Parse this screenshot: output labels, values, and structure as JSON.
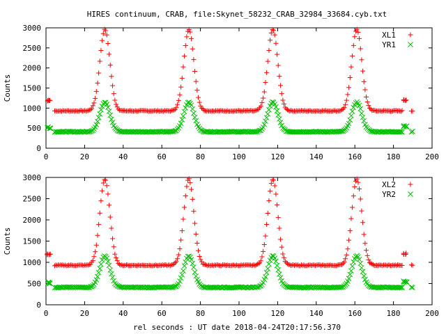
{
  "title": "HIRES continuum, CRAB, file:Skynet_58232_CRAB_32984_33684.cyb.txt",
  "xlabel": "rel seconds : UT date 2018-04-24T20:17:56.370",
  "chart_data": [
    {
      "type": "scatter",
      "panel": "top",
      "ylabel": "Counts",
      "xlim": [
        0,
        200
      ],
      "ylim": [
        0,
        3000
      ],
      "xticks": [
        "0",
        "20",
        "40",
        "60",
        "80",
        "100",
        "120",
        "140",
        "160",
        "180",
        "200"
      ],
      "yticks": [
        "0",
        "500",
        "1000",
        "1500",
        "2000",
        "2500",
        "3000"
      ],
      "legend_position": "top-right",
      "series": [
        {
          "name": "XL1",
          "marker": "plus",
          "color": "#ff0000",
          "baseline": 930,
          "peak_height": 2960,
          "peak_centers": [
            30.5,
            74,
            117.5,
            161
          ],
          "peak_sigma": 2.6,
          "calibration_points": [
            [
              1,
              1190
            ],
            [
              2,
              1190
            ],
            [
              185.5,
              1200
            ],
            [
              186.5,
              1200
            ]
          ],
          "gaps": [
            [
              2.5,
              4
            ],
            [
              187,
              188.5
            ]
          ],
          "x_range": [
            1,
            190
          ]
        },
        {
          "name": "YR1",
          "marker": "x",
          "color": "#00c000",
          "baseline": 410,
          "peak_height": 1150,
          "peak_centers": [
            30.5,
            74,
            117.5,
            161
          ],
          "peak_sigma": 2.6,
          "calibration_points": [
            [
              1,
              520
            ],
            [
              2,
              510
            ],
            [
              185.5,
              545
            ],
            [
              186.5,
              540
            ]
          ],
          "gaps": [
            [
              2.5,
              4
            ],
            [
              187,
              188.5
            ]
          ],
          "x_range": [
            1,
            190
          ]
        }
      ]
    },
    {
      "type": "scatter",
      "panel": "bottom",
      "ylabel": "Counts",
      "xlabel": "rel seconds : UT date 2018-04-24T20:17:56.370",
      "xlim": [
        0,
        200
      ],
      "ylim": [
        0,
        3000
      ],
      "xticks": [
        "0",
        "20",
        "40",
        "60",
        "80",
        "100",
        "120",
        "140",
        "160",
        "180",
        "200"
      ],
      "yticks": [
        "0",
        "500",
        "1000",
        "1500",
        "2000",
        "2500",
        "3000"
      ],
      "legend_position": "top-right",
      "series": [
        {
          "name": "XL2",
          "marker": "plus",
          "color": "#ff0000",
          "baseline": 930,
          "peak_height": 2960,
          "peak_centers": [
            30.5,
            74,
            117.5,
            161
          ],
          "peak_sigma": 2.6,
          "calibration_points": [
            [
              1,
              1190
            ],
            [
              2,
              1190
            ],
            [
              185.5,
              1200
            ],
            [
              186.5,
              1200
            ]
          ],
          "gaps": [
            [
              2.5,
              4
            ],
            [
              187,
              188.5
            ]
          ],
          "x_range": [
            1,
            190
          ]
        },
        {
          "name": "YR2",
          "marker": "x",
          "color": "#00c000",
          "baseline": 410,
          "peak_height": 1150,
          "peak_centers": [
            30.5,
            74,
            117.5,
            161
          ],
          "peak_sigma": 2.6,
          "calibration_points": [
            [
              1,
              520
            ],
            [
              2,
              510
            ],
            [
              185.5,
              545
            ],
            [
              186.5,
              540
            ]
          ],
          "gaps": [
            [
              2.5,
              4
            ],
            [
              187,
              188.5
            ]
          ],
          "x_range": [
            1,
            190
          ]
        }
      ]
    }
  ]
}
